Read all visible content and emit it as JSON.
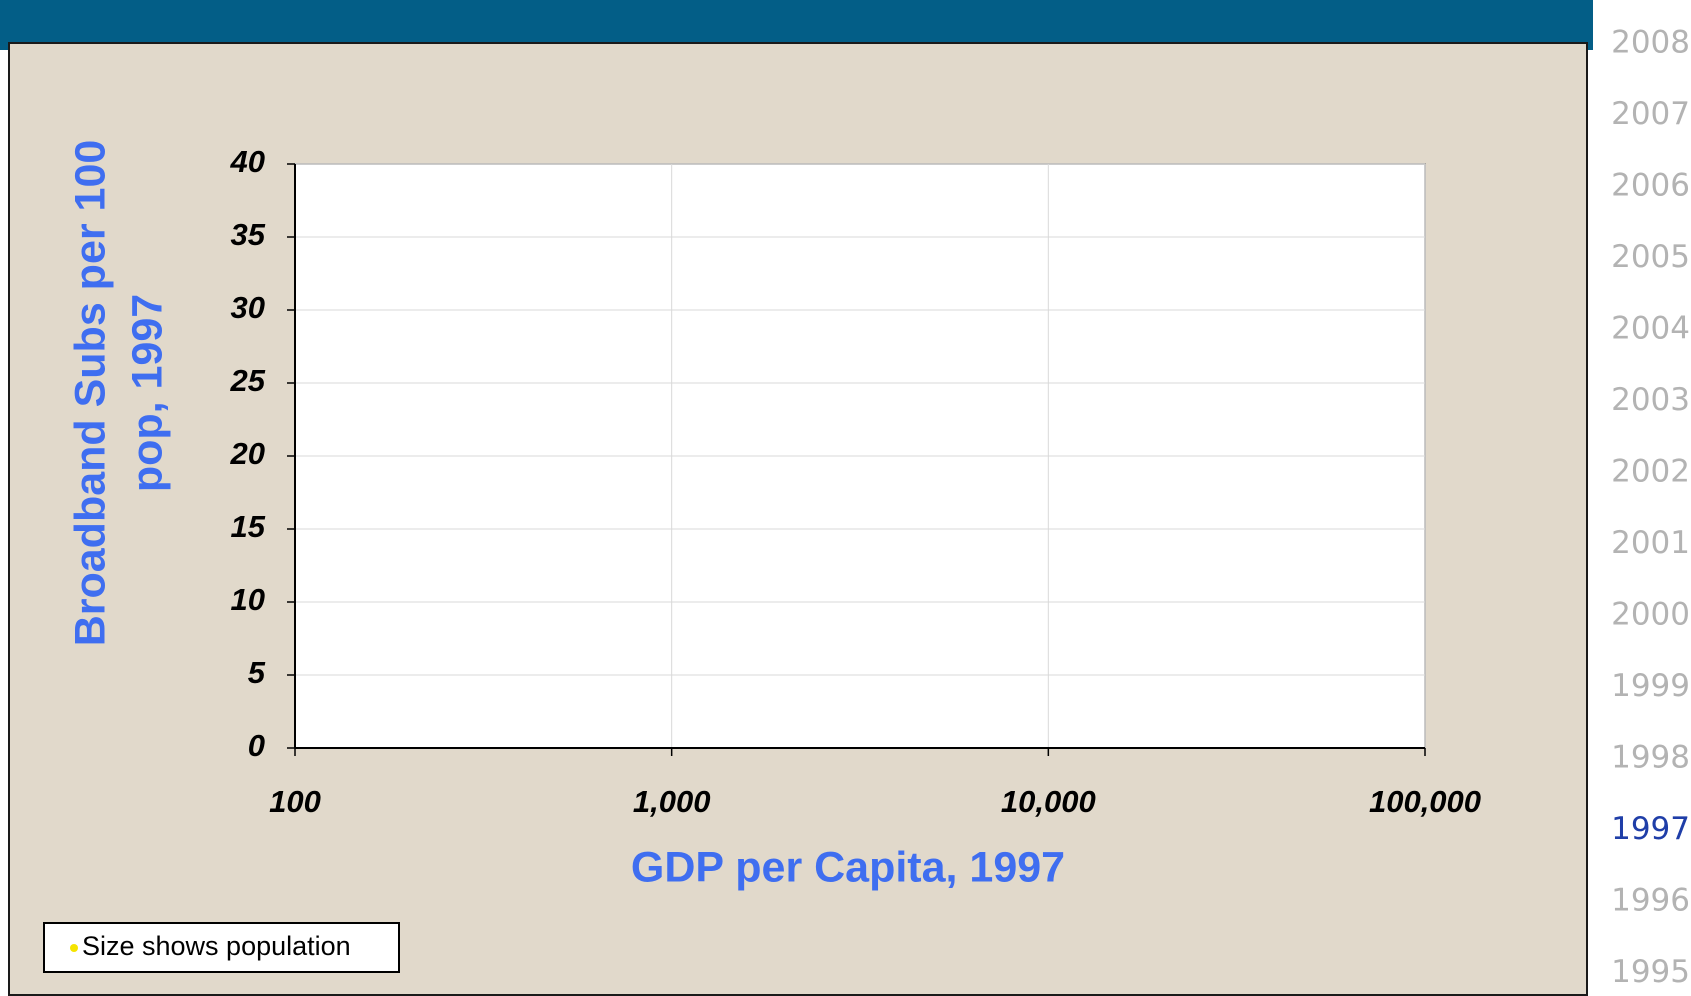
{
  "chart_data": {
    "type": "scatter",
    "xlabel": "GDP per Capita, 1997",
    "ylabel": [
      "Broadband Subs per 100",
      "pop,  1997"
    ],
    "xlim": [
      100,
      100000
    ],
    "xscale": "log",
    "xticks": [
      100,
      {
        "value": 1000,
        "label": "1,000"
      },
      {
        "value": 10000,
        "label": "10,000"
      },
      {
        "value": 100000,
        "label": "100,000"
      }
    ],
    "ylim": [
      0,
      40
    ],
    "yticks": [
      0,
      5,
      10,
      15,
      20,
      25,
      30,
      35,
      40
    ],
    "grid": true,
    "size_note": "Size shows population"
  },
  "year_selector": {
    "years": [
      2008,
      2007,
      2006,
      2005,
      2004,
      2003,
      2002,
      2001,
      2000,
      1999,
      1998,
      1997,
      1996,
      1995
    ],
    "selected_year": 1997
  }
}
